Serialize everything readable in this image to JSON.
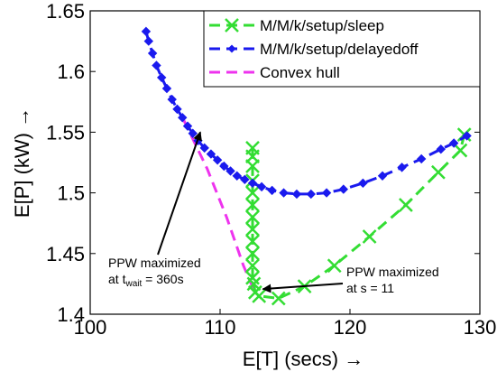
{
  "chart_data": {
    "type": "line",
    "title": "",
    "xlabel": "E[T] (secs) →",
    "ylabel": "E[P] (kW) →",
    "xlim": [
      100,
      130
    ],
    "ylim": [
      1.4,
      1.65
    ],
    "xticks": [
      100,
      110,
      120,
      130
    ],
    "yticks": [
      1.4,
      1.45,
      1.5,
      1.55,
      1.6,
      1.65
    ],
    "ytick_labels": [
      "1.4",
      "1.45",
      "1.5",
      "1.55",
      "1.6",
      "1.65"
    ],
    "grid": false,
    "legend_position": "top-right",
    "series": [
      {
        "name": "M/M/k/setup/sleep",
        "color": "#33dd33",
        "line_style": "dashed",
        "marker": "x",
        "x": [
          112.5,
          112.5,
          112.5,
          112.5,
          112.5,
          112.5,
          112.5,
          112.5,
          112.5,
          112.5,
          112.5,
          112.5,
          112.6,
          112.7,
          113.0,
          114.5,
          116.5,
          118.8,
          121.5,
          124.3,
          126.8,
          128.5,
          128.8
        ],
        "y": [
          1.537,
          1.53,
          1.522,
          1.51,
          1.5,
          1.49,
          1.48,
          1.47,
          1.46,
          1.45,
          1.44,
          1.43,
          1.425,
          1.418,
          1.415,
          1.413,
          1.423,
          1.44,
          1.464,
          1.49,
          1.517,
          1.535,
          1.548
        ]
      },
      {
        "name": "M/M/k/setup/delayedoff",
        "color": "#1a1aee",
        "line_style": "dashed",
        "marker": "diamond",
        "x": [
          104.3,
          104.5,
          104.8,
          105.1,
          105.5,
          105.9,
          106.3,
          106.7,
          107.1,
          107.5,
          107.9,
          108.3,
          108.8,
          109.3,
          109.8,
          110.3,
          110.8,
          111.3,
          111.9,
          112.5,
          113.2,
          114.0,
          114.9,
          115.9,
          117.0,
          118.2,
          119.5,
          121.0,
          122.5,
          124.0,
          125.5,
          127.0,
          128.0,
          129.0
        ],
        "y": [
          1.633,
          1.625,
          1.615,
          1.605,
          1.595,
          1.586,
          1.577,
          1.569,
          1.562,
          1.555,
          1.549,
          1.543,
          1.537,
          1.532,
          1.527,
          1.522,
          1.518,
          1.514,
          1.511,
          1.508,
          1.505,
          1.502,
          1.5,
          1.499,
          1.499,
          1.5,
          1.503,
          1.508,
          1.514,
          1.521,
          1.528,
          1.536,
          1.541,
          1.547
        ]
      },
      {
        "name": "Convex hull",
        "color": "#ee33ee",
        "line_style": "dashed",
        "marker": "none",
        "x": [
          107.2,
          109.0,
          110.5,
          111.8,
          112.6
        ],
        "y": [
          1.56,
          1.52,
          1.48,
          1.44,
          1.42
        ]
      }
    ],
    "annotations": [
      {
        "lines": [
          "PPW maximized",
          "at t",
          "wait",
          " = 360s"
        ],
        "arrow_to": [
          108.2,
          1.553
        ]
      },
      {
        "lines": [
          "PPW maximized",
          "at s = 11"
        ],
        "arrow_to": [
          112.6,
          1.42
        ]
      }
    ]
  }
}
